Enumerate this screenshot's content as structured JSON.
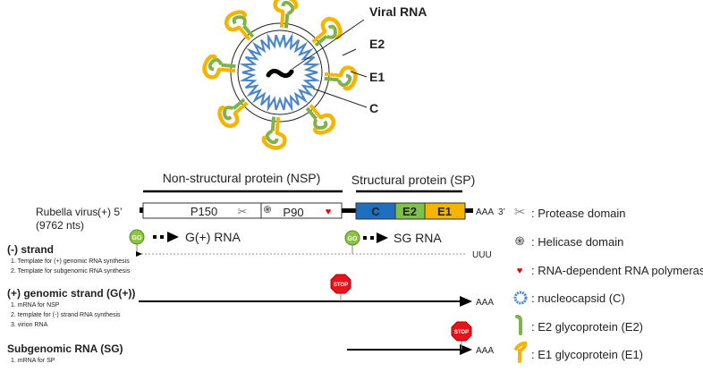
{
  "virion": {
    "labels": {
      "viral_rna": "Viral RNA",
      "e2": "E2",
      "e1": "E1",
      "c": "C"
    },
    "colors": {
      "capsid": "#4a86c8",
      "e1": "#f5b400",
      "e2": "#7fb24a"
    }
  },
  "genome": {
    "name": "Rubella virus",
    "polarity_5": "(+) 5’",
    "length": "(9762 nts)",
    "nsp_title": "Non-structural protein (NSP)",
    "sp_title": "Structural protein (SP)",
    "p150": "P150",
    "p90": "P90",
    "c": "C",
    "e2": "E2",
    "e1": "E1",
    "end_3": "AAA  3’",
    "colors": {
      "c": "#1f6fc0",
      "e2": "#7fc24a",
      "e1": "#f5b400"
    }
  },
  "promoters": {
    "go": "GO",
    "g_rna": "G(+) RNA",
    "sg_rna": "SG RNA",
    "uuu": "UUU",
    "stop": "STOP",
    "aaa": "AAA"
  },
  "strands": [
    {
      "title": "(-) strand",
      "items": [
        "1. Template for (+) genomic RNA synthesis",
        "2. Template for subgenomic RNA synthesis"
      ]
    },
    {
      "title": "(+) genomic strand (G(+))",
      "items": [
        "1. mRNA for NSP",
        "2. template for (-) strand RNA synthesis",
        "3. virion RNA"
      ]
    },
    {
      "title": "Subgenomic RNA (SG)",
      "items": [
        "1. mRNA for SP"
      ]
    }
  ],
  "legend": [
    {
      "icon": "scissors-icon",
      "label": ": Protease domain"
    },
    {
      "icon": "helicase-icon",
      "label": ": Helicase domain"
    },
    {
      "icon": "heart-icon",
      "label": ": RNA-dependent RNA polymerase"
    },
    {
      "icon": "nucleocapsid-icon",
      "label": ": nucleocapsid (C)"
    },
    {
      "icon": "e2-glycoprotein-icon",
      "label": ": E2 glycoprotein (E2)"
    },
    {
      "icon": "e1-glycoprotein-icon",
      "label": ": E1 glycoprotein (E1)"
    }
  ]
}
